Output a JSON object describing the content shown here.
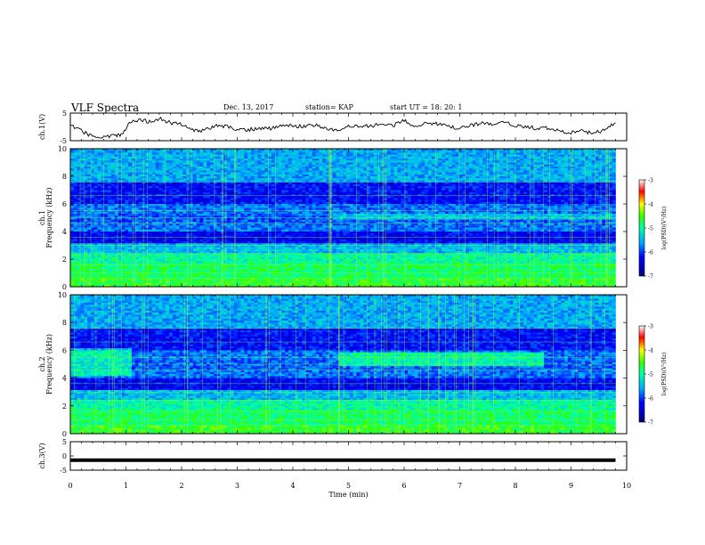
{
  "header": {
    "title": "VLF Spectra",
    "date": "Dec. 13, 2017",
    "station": "station= KAP",
    "start_ut": "start  UT =   18: 20: 1"
  },
  "chart_data": [
    {
      "panel": "ch1-waveform",
      "type": "line",
      "ylabel": "ch.1(V)",
      "ylim": [
        -5,
        5
      ],
      "yticks": [
        "5",
        "-5"
      ],
      "x": [
        0,
        0.2,
        0.4,
        0.6,
        0.8,
        0.95,
        1.05,
        1.2,
        1.4,
        1.6,
        1.8,
        2.0,
        2.2,
        2.4,
        2.6,
        2.8,
        3.0,
        3.2,
        3.4,
        3.6,
        3.8,
        4.0,
        4.2,
        4.4,
        4.6,
        4.8,
        5.0,
        5.2,
        5.4,
        5.6,
        5.8,
        6.0,
        6.2,
        6.4,
        6.6,
        6.8,
        7.0,
        7.2,
        7.4,
        7.6,
        7.8,
        8.0,
        8.2,
        8.4,
        8.6,
        8.8,
        9.0,
        9.2,
        9.4,
        9.6,
        9.8
      ],
      "values": [
        0.5,
        -1.5,
        -3.5,
        -3.8,
        -3.2,
        -2.5,
        1.5,
        2.5,
        2.0,
        3.0,
        1.5,
        1.0,
        -1.0,
        -1.5,
        0.5,
        0.0,
        -1.0,
        -1.0,
        -0.5,
        -0.5,
        0.5,
        0.5,
        0.0,
        0.8,
        -0.8,
        -1.5,
        0.5,
        0.0,
        0.5,
        0.8,
        0.5,
        2.5,
        0.0,
        1.5,
        1.0,
        0.0,
        -0.5,
        0.5,
        1.5,
        0.5,
        1.5,
        0.5,
        0.0,
        -0.5,
        -0.5,
        -1.5,
        -2.0,
        -1.5,
        -2.5,
        -1.0,
        1.5
      ]
    },
    {
      "panel": "ch1-spectrogram",
      "type": "heatmap",
      "ylabel": "Frequency (kHz)",
      "ylabel2": "ch.1",
      "ylim": [
        0,
        10
      ],
      "yticks": [
        "0",
        "2",
        "4",
        "6",
        "8",
        "10"
      ],
      "colorbar": {
        "label": "log(PSD)(V²/Hz)",
        "range": [
          -7,
          -3
        ],
        "ticks": [
          "-3",
          "-4",
          "-5",
          "-6",
          "-7"
        ]
      }
    },
    {
      "panel": "ch2-spectrogram",
      "type": "heatmap",
      "ylabel": "Frequency (kHz)",
      "ylabel2": "ch.2",
      "ylim": [
        0,
        10
      ],
      "yticks": [
        "0",
        "2",
        "4",
        "6",
        "8",
        "10"
      ],
      "colorbar": {
        "label": "log(PSD)(V²/Hz)",
        "range": [
          -7,
          -3
        ],
        "ticks": [
          "-3",
          "-4",
          "-5",
          "-6",
          "-7"
        ]
      }
    },
    {
      "panel": "ch3-waveform",
      "type": "line",
      "ylabel": "ch.3(V)",
      "ylim": [
        -5,
        5
      ],
      "yticks": [
        "5",
        "0",
        "-5"
      ],
      "x": [
        0,
        9.8
      ],
      "values": [
        -1.5,
        -1.5
      ]
    }
  ],
  "xaxis": {
    "label": "Time  (min)",
    "xlim": [
      0,
      10
    ],
    "ticks": [
      "0",
      "1",
      "2",
      "3",
      "4",
      "5",
      "6",
      "7",
      "8",
      "9",
      "10"
    ]
  }
}
